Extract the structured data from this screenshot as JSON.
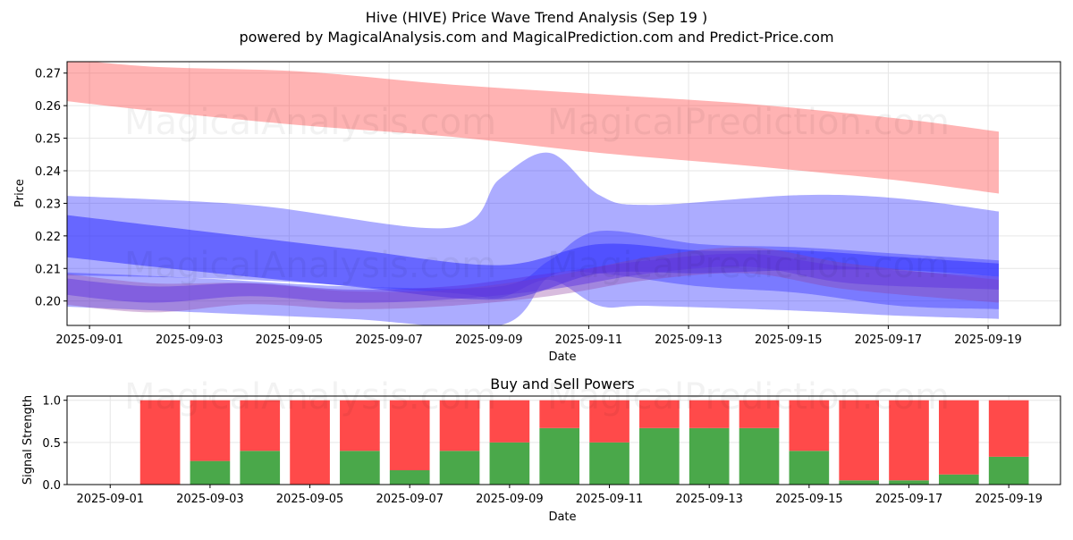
{
  "title": "Hive (HIVE) Price Wave Trend Analysis (Sep 19 )",
  "subtitle": "powered by MagicalAnalysis.com and MagicalPrediction.com and Predict-Price.com",
  "watermarks": [
    "MagicalAnalysis.com",
    "MagicalPrediction.com"
  ],
  "colors": {
    "sell_band": "#ff4040",
    "buy_band": "#3030ff",
    "sell_bar": "#ff4a4a",
    "buy_bar": "#4aa84a",
    "mixed_band": "#9040a0",
    "grid": "#e6e6e6"
  },
  "chart_data": [
    {
      "type": "area",
      "xlabel": "Date",
      "ylabel": "Price",
      "xlim": [
        "2025-08-31",
        "2025-09-20"
      ],
      "ylim": [
        0.1925,
        0.2735
      ],
      "x_ticks": [
        "2025-09-01",
        "2025-09-03",
        "2025-09-05",
        "2025-09-07",
        "2025-09-09",
        "2025-09-11",
        "2025-09-13",
        "2025-09-15",
        "2025-09-17",
        "2025-09-19"
      ],
      "y_ticks": [
        0.2,
        0.21,
        0.22,
        0.23,
        0.24,
        0.25,
        0.26,
        0.27
      ],
      "grid": true,
      "series": [
        {
          "color": "#ff4040",
          "opacity": 0.4,
          "x": [
            "2025-08-31",
            "2025-09-02",
            "2025-09-05",
            "2025-09-08",
            "2025-09-11",
            "2025-09-14",
            "2025-09-17",
            "2025-09-19"
          ],
          "upper": [
            0.275,
            0.272,
            0.2705,
            0.2665,
            0.2635,
            0.2605,
            0.256,
            0.252
          ],
          "lower": [
            0.262,
            0.2585,
            0.254,
            0.2505,
            0.2455,
            0.2415,
            0.237,
            0.233
          ]
        },
        {
          "color": "#3030ff",
          "opacity": 0.4,
          "x": [
            "2025-08-31",
            "2025-09-04",
            "2025-09-08",
            "2025-09-09",
            "2025-09-10",
            "2025-09-11",
            "2025-09-12",
            "2025-09-15",
            "2025-09-17",
            "2025-09-19"
          ],
          "upper": [
            0.2325,
            0.2295,
            0.2225,
            0.2375,
            0.2455,
            0.2325,
            0.2295,
            0.2325,
            0.2315,
            0.2275
          ],
          "lower": [
            0.208,
            0.2065,
            0.2025,
            0.201,
            0.2065,
            0.1985,
            0.1985,
            0.197,
            0.1955,
            0.1945
          ]
        },
        {
          "color": "#3030ff",
          "opacity": 0.4,
          "x": [
            "2025-08-31",
            "2025-09-03",
            "2025-09-06",
            "2025-09-09",
            "2025-09-10",
            "2025-09-11",
            "2025-09-13",
            "2025-09-15",
            "2025-09-17",
            "2025-09-19"
          ],
          "upper": [
            0.209,
            0.207,
            0.2045,
            0.2045,
            0.2125,
            0.2215,
            0.2175,
            0.2165,
            0.2145,
            0.2125
          ],
          "lower": [
            0.1985,
            0.1965,
            0.1945,
            0.1925,
            0.2075,
            0.2085,
            0.2045,
            0.2025,
            0.1985,
            0.1975
          ]
        },
        {
          "color": "#3030ff",
          "opacity": 0.55,
          "x": [
            "2025-08-31",
            "2025-09-03",
            "2025-09-06",
            "2025-09-09",
            "2025-09-11",
            "2025-09-13",
            "2025-09-15",
            "2025-09-17",
            "2025-09-19"
          ],
          "upper": [
            0.227,
            0.2215,
            0.216,
            0.211,
            0.2175,
            0.2155,
            0.2155,
            0.2135,
            0.2115
          ],
          "lower": [
            0.214,
            0.209,
            0.2045,
            0.2005,
            0.2085,
            0.2085,
            0.2095,
            0.2095,
            0.2075
          ]
        },
        {
          "color": "#9040a0",
          "opacity": 0.35,
          "x": [
            "2025-08-31",
            "2025-09-02",
            "2025-09-04",
            "2025-09-06",
            "2025-09-08",
            "2025-09-10",
            "2025-09-12",
            "2025-09-14",
            "2025-09-16",
            "2025-09-19"
          ],
          "upper": [
            0.209,
            0.2055,
            0.2055,
            0.203,
            0.2035,
            0.2075,
            0.2135,
            0.2165,
            0.2115,
            0.2065
          ],
          "lower": [
            0.1995,
            0.1965,
            0.199,
            0.1975,
            0.1985,
            0.2015,
            0.2065,
            0.2085,
            0.2035,
            0.1995
          ]
        },
        {
          "color": "#5a30e0",
          "opacity": 0.45,
          "x": [
            "2025-08-31",
            "2025-09-02",
            "2025-09-04",
            "2025-09-06",
            "2025-09-08",
            "2025-09-10",
            "2025-09-12",
            "2025-09-14",
            "2025-09-16",
            "2025-09-19"
          ],
          "upper": [
            0.2075,
            0.2045,
            0.2055,
            0.2035,
            0.2045,
            0.2085,
            0.2125,
            0.2145,
            0.2105,
            0.2075
          ],
          "lower": [
            0.2025,
            0.1995,
            0.2015,
            0.1995,
            0.2005,
            0.2035,
            0.2085,
            0.2105,
            0.2055,
            0.2035
          ]
        }
      ]
    },
    {
      "type": "bar",
      "title": "Buy and Sell Powers",
      "xlabel": "Date",
      "ylabel": "Signal Strength",
      "xlim": [
        "2025-08-31",
        "2025-09-20"
      ],
      "ylim": [
        0,
        1.05
      ],
      "y_ticks": [
        0.0,
        0.5,
        1.0
      ],
      "x_ticks": [
        "2025-09-01",
        "2025-09-03",
        "2025-09-05",
        "2025-09-07",
        "2025-09-09",
        "2025-09-11",
        "2025-09-13",
        "2025-09-15",
        "2025-09-17",
        "2025-09-19"
      ],
      "categories": [
        "2025-09-02",
        "2025-09-03",
        "2025-09-04",
        "2025-09-05",
        "2025-09-06",
        "2025-09-07",
        "2025-09-08",
        "2025-09-09",
        "2025-09-10",
        "2025-09-11",
        "2025-09-12",
        "2025-09-13",
        "2025-09-14",
        "2025-09-15",
        "2025-09-16",
        "2025-09-17",
        "2025-09-18",
        "2025-09-19"
      ],
      "series": [
        {
          "values": [
            0.0,
            0.28,
            0.4,
            0.0,
            0.4,
            0.17,
            0.4,
            0.5,
            0.67,
            0.5,
            0.67,
            0.67,
            0.67,
            0.4,
            0.05,
            0.05,
            0.12,
            0.33
          ]
        },
        {
          "values": [
            1.0,
            0.72,
            0.6,
            1.0,
            0.6,
            0.83,
            0.6,
            0.5,
            0.33,
            0.5,
            0.33,
            0.33,
            0.33,
            0.6,
            0.95,
            0.95,
            0.88,
            0.67
          ]
        }
      ],
      "grid": true
    }
  ]
}
